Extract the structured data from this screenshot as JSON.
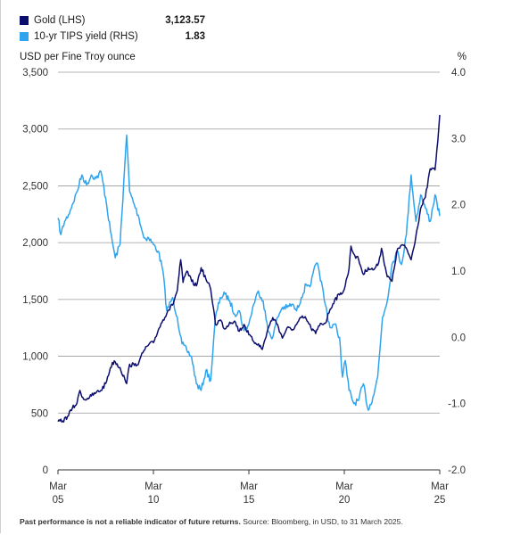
{
  "legend": [
    {
      "label": "Gold (LHS)",
      "value": "3,123.57",
      "color": "#0c0e6e"
    },
    {
      "label": "10-yr TIPS yield (RHS)",
      "value": "1.83",
      "color": "#2fa4ee"
    }
  ],
  "left_axis_title": "USD per Fine Troy ounce",
  "right_axis_title": "%",
  "footer": {
    "bold": "Past performance is not a reliable indicator of future returns.",
    "normal": " Source: Bloomberg, in USD, to 31 March 2025."
  },
  "chart_data": {
    "type": "line",
    "x_range": [
      2005.25,
      2025.25
    ],
    "x_ticks": [
      {
        "x": 2005.25,
        "line1": "Mar",
        "line2": "05"
      },
      {
        "x": 2010.25,
        "line1": "Mar",
        "line2": "10"
      },
      {
        "x": 2015.25,
        "line1": "Mar",
        "line2": "15"
      },
      {
        "x": 2020.25,
        "line1": "Mar",
        "line2": "20"
      },
      {
        "x": 2025.25,
        "line1": "Mar",
        "line2": "25"
      }
    ],
    "y_left": {
      "range": [
        0,
        3500
      ],
      "ticks": [
        "0",
        "500",
        "1,000",
        "1,500",
        "2,000",
        "2,500",
        "3,000",
        "3,500"
      ],
      "tick_values": [
        0,
        500,
        1000,
        1500,
        2000,
        2500,
        3000,
        3500
      ]
    },
    "y_right": {
      "range": [
        -2.0,
        4.0
      ],
      "ticks": [
        "-2.0",
        "-1.0",
        "0.0",
        "1.0",
        "2.0",
        "3.0",
        "4.0"
      ],
      "tick_values": [
        -2,
        -1,
        0,
        1,
        2,
        3,
        4
      ]
    },
    "grid": true,
    "series": [
      {
        "name": "Gold (LHS)",
        "axis": "left",
        "color": "#0c0e6e",
        "x": [
          2005.25,
          2005.5,
          2005.75,
          2006.0,
          2006.25,
          2006.4,
          2006.6,
          2006.8,
          2007.0,
          2007.25,
          2007.5,
          2007.75,
          2008.0,
          2008.2,
          2008.5,
          2008.75,
          2008.85,
          2009.0,
          2009.25,
          2009.5,
          2009.75,
          2010.0,
          2010.25,
          2010.5,
          2010.75,
          2011.0,
          2011.25,
          2011.5,
          2011.68,
          2011.8,
          2012.0,
          2012.25,
          2012.5,
          2012.75,
          2013.0,
          2013.25,
          2013.4,
          2013.5,
          2013.75,
          2014.0,
          2014.25,
          2014.5,
          2014.75,
          2015.0,
          2015.25,
          2015.5,
          2015.75,
          2015.95,
          2016.25,
          2016.5,
          2016.75,
          2017.0,
          2017.25,
          2017.5,
          2017.75,
          2018.0,
          2018.25,
          2018.5,
          2018.75,
          2019.0,
          2019.25,
          2019.5,
          2019.75,
          2020.0,
          2020.25,
          2020.5,
          2020.6,
          2020.75,
          2021.0,
          2021.25,
          2021.5,
          2021.75,
          2022.0,
          2022.2,
          2022.5,
          2022.75,
          2023.0,
          2023.25,
          2023.5,
          2023.75,
          2024.0,
          2024.25,
          2024.5,
          2024.75,
          2025.0,
          2025.15,
          2025.25
        ],
        "values": [
          425,
          430,
          470,
          540,
          590,
          700,
          620,
          630,
          650,
          680,
          700,
          760,
          900,
          960,
          900,
          800,
          760,
          930,
          920,
          950,
          1050,
          1100,
          1120,
          1230,
          1320,
          1400,
          1450,
          1580,
          1850,
          1650,
          1750,
          1660,
          1620,
          1780,
          1680,
          1590,
          1420,
          1280,
          1320,
          1240,
          1300,
          1310,
          1220,
          1280,
          1190,
          1130,
          1110,
          1060,
          1240,
          1340,
          1280,
          1160,
          1250,
          1230,
          1280,
          1340,
          1330,
          1250,
          1200,
          1290,
          1290,
          1410,
          1500,
          1540,
          1590,
          1770,
          1970,
          1900,
          1850,
          1720,
          1780,
          1760,
          1800,
          1950,
          1700,
          1660,
          1920,
          1980,
          1950,
          1850,
          2060,
          2300,
          2400,
          2650,
          2640,
          2900,
          3124
        ]
      },
      {
        "name": "10-yr TIPS yield (RHS)",
        "axis": "right",
        "color": "#2fa4ee",
        "x": [
          2005.25,
          2005.4,
          2005.6,
          2005.8,
          2006.0,
          2006.25,
          2006.5,
          2006.75,
          2007.0,
          2007.25,
          2007.5,
          2007.75,
          2008.0,
          2008.25,
          2008.5,
          2008.75,
          2008.85,
          2009.0,
          2009.25,
          2009.5,
          2009.75,
          2010.0,
          2010.25,
          2010.5,
          2010.75,
          2010.95,
          2011.25,
          2011.5,
          2011.75,
          2012.0,
          2012.25,
          2012.5,
          2012.75,
          2013.0,
          2013.25,
          2013.5,
          2013.75,
          2014.0,
          2014.25,
          2014.5,
          2014.75,
          2015.0,
          2015.25,
          2015.5,
          2015.75,
          2016.0,
          2016.25,
          2016.5,
          2016.75,
          2017.0,
          2017.25,
          2017.5,
          2017.75,
          2018.0,
          2018.25,
          2018.5,
          2018.75,
          2018.9,
          2019.25,
          2019.5,
          2019.75,
          2020.0,
          2020.15,
          2020.3,
          2020.5,
          2020.75,
          2021.0,
          2021.25,
          2021.5,
          2021.75,
          2022.0,
          2022.25,
          2022.5,
          2022.75,
          2023.0,
          2023.25,
          2023.5,
          2023.75,
          2024.0,
          2024.25,
          2024.5,
          2024.75,
          2025.0,
          2025.25
        ],
        "values": [
          1.8,
          1.55,
          1.75,
          1.85,
          2.0,
          2.2,
          2.45,
          2.3,
          2.45,
          2.4,
          2.5,
          2.1,
          1.6,
          1.2,
          1.4,
          2.6,
          3.05,
          2.2,
          2.0,
          1.8,
          1.5,
          1.5,
          1.4,
          1.3,
          1.0,
          0.4,
          0.6,
          0.3,
          -0.1,
          -0.2,
          -0.3,
          -0.7,
          -0.8,
          -0.5,
          -0.65,
          0.3,
          0.6,
          0.65,
          0.55,
          0.35,
          0.4,
          0.1,
          0.2,
          0.5,
          0.7,
          0.55,
          0.1,
          0.0,
          0.3,
          0.45,
          0.45,
          0.5,
          0.4,
          0.6,
          0.8,
          0.8,
          1.1,
          1.05,
          0.5,
          0.15,
          0.2,
          0.0,
          -0.6,
          -0.35,
          -0.8,
          -1.0,
          -0.95,
          -0.7,
          -1.1,
          -0.9,
          -0.6,
          0.3,
          0.55,
          1.1,
          1.3,
          1.1,
          1.55,
          2.45,
          1.75,
          2.15,
          1.95,
          1.75,
          2.15,
          1.83
        ]
      }
    ]
  }
}
